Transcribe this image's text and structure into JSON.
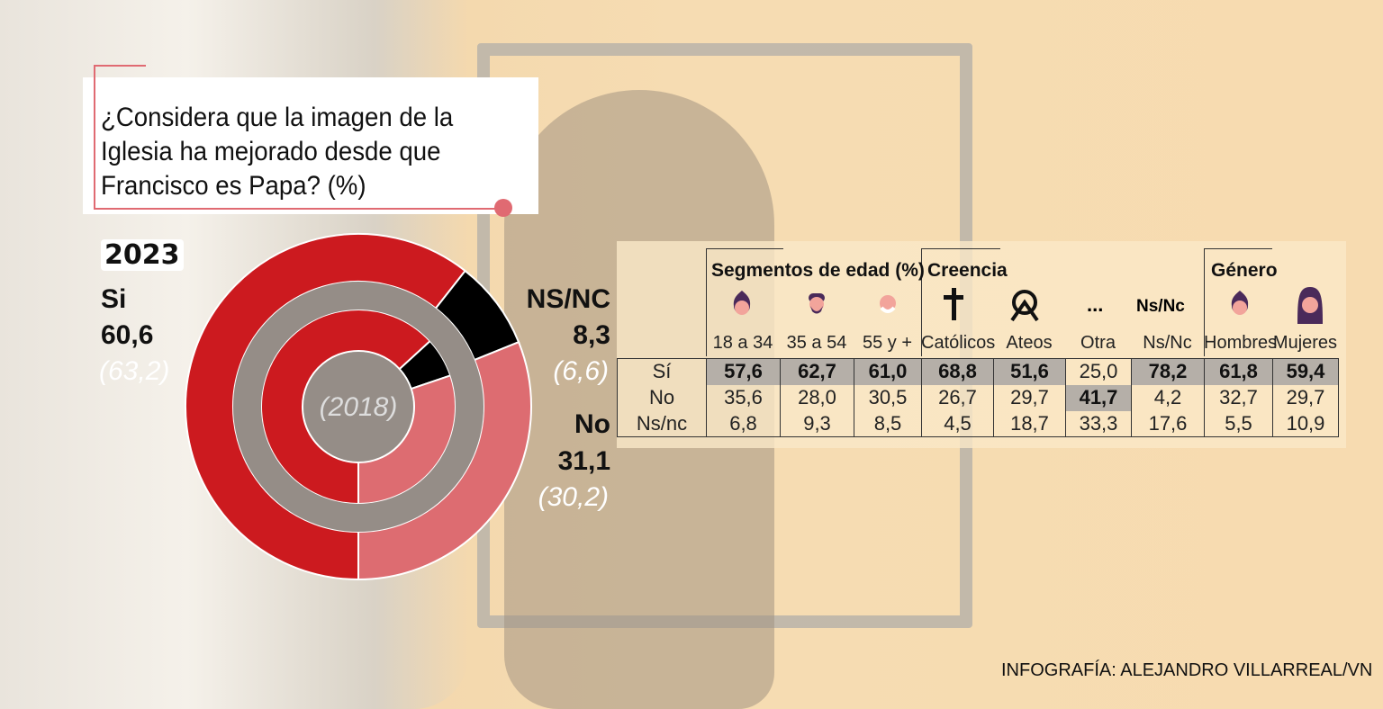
{
  "title": "¿Considera que la imagen de la Iglesia ha mejorado desde que Francisco es Papa? (%)",
  "chart_data": {
    "type": "pie",
    "subtype": "double donut",
    "title": "¿Considera que la imagen de la Iglesia ha mejorado desde que Francisco es Papa? (%)",
    "categories": [
      "Si",
      "NS/NC",
      "No"
    ],
    "colors": [
      "#cc1a1f",
      "#000000",
      "#dd6c71"
    ],
    "series": [
      {
        "name": "2023",
        "values": [
          60.6,
          8.3,
          31.1
        ],
        "labels": [
          "60,6",
          "8,3",
          "31,1"
        ]
      },
      {
        "name": "2018",
        "values": [
          63.2,
          6.6,
          30.2
        ],
        "labels": [
          "(63,2)",
          "(6,6)",
          "(30,2)"
        ]
      }
    ],
    "outer_label": "2023",
    "inner_label": "(2018)"
  },
  "table": {
    "groups": [
      "Segmentos de edad (%)",
      "Creencia",
      "Género"
    ],
    "icons": [
      "young-man-face-icon",
      "bearded-man-face-icon",
      "elderly-man-face-icon",
      "cross-icon",
      "atheism-symbol-icon",
      "ellipsis-icon",
      "Ns/Nc",
      "man-face-icon",
      "woman-face-icon"
    ],
    "ellipsis": "...",
    "nsnc_icon": "Ns/Nc",
    "columns": [
      "18 a 34",
      "35 a 54",
      "55 y +",
      "Católicos",
      "Ateos",
      "Otra",
      "Ns/Nc",
      "Hombres",
      "Mujeres"
    ],
    "rows": [
      {
        "label": "Sí",
        "values": [
          "57,6",
          "62,7",
          "61,0",
          "68,8",
          "51,6",
          "25,0",
          "78,2",
          "61,8",
          "59,4"
        ],
        "highlight": [
          true,
          true,
          true,
          true,
          true,
          false,
          true,
          true,
          true
        ]
      },
      {
        "label": "No",
        "values": [
          "35,6",
          "28,0",
          "30,5",
          "26,7",
          "29,7",
          "41,7",
          "4,2",
          "32,7",
          "29,7"
        ],
        "highlight": [
          false,
          false,
          false,
          false,
          false,
          true,
          false,
          false,
          false
        ]
      },
      {
        "label": "Ns/nc",
        "values": [
          "6,8",
          "9,3",
          "8,5",
          "4,5",
          "18,7",
          "33,3",
          "17,6",
          "5,5",
          "10,9"
        ],
        "highlight": [
          false,
          false,
          false,
          false,
          false,
          false,
          false,
          false,
          false
        ]
      }
    ]
  },
  "credit": "INFOGRAFÍA: ALEJANDRO VILLARREAL/VN"
}
